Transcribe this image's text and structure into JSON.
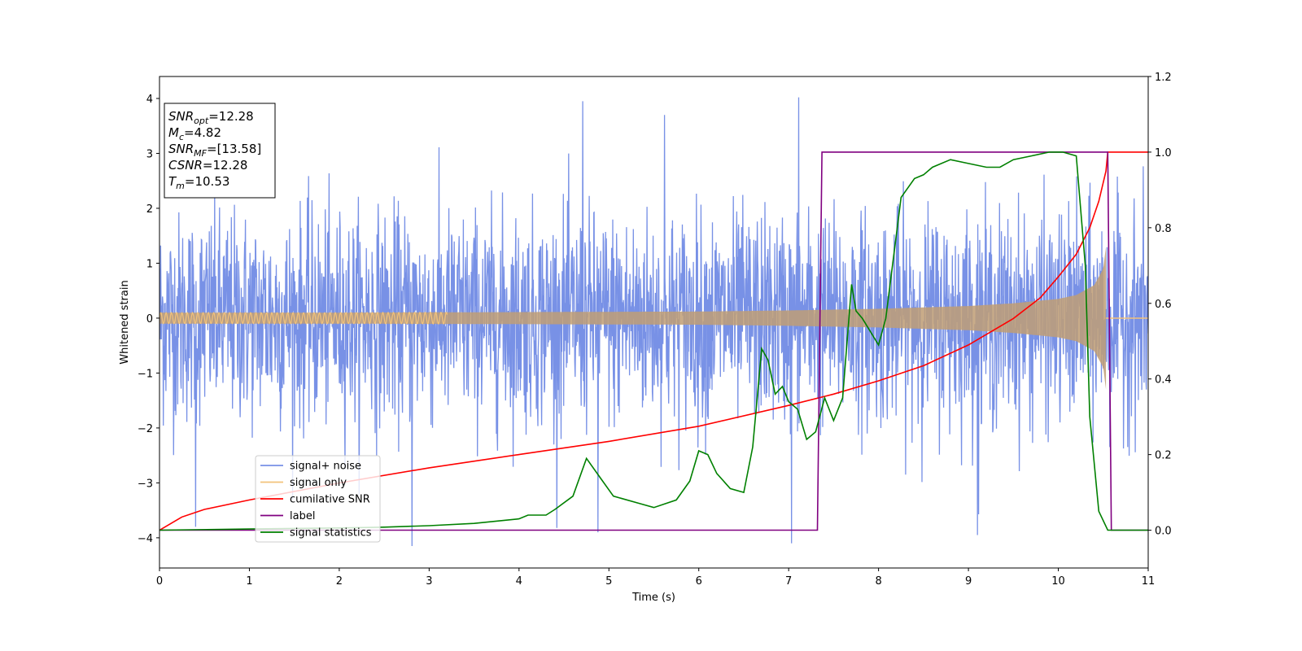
{
  "chart_data": {
    "type": "line",
    "xlabel": "Time (s)",
    "ylabel": "Whitened strain",
    "xlim": [
      0,
      11
    ],
    "ylim_left": [
      -4.55,
      4.4
    ],
    "ylim_right": [
      -0.1,
      1.2
    ],
    "x_ticks": [
      "0",
      "1",
      "2",
      "3",
      "4",
      "5",
      "6",
      "7",
      "8",
      "9",
      "10",
      "11"
    ],
    "y_left_ticks": [
      "4",
      "3",
      "2",
      "1",
      "0",
      "−1",
      "−2",
      "−3",
      "−4"
    ],
    "y_right_ticks": [
      "1.2",
      "1.0",
      "0.8",
      "0.6",
      "0.4",
      "0.2",
      "0.0"
    ],
    "colors": {
      "signal_noise": "#7891e6",
      "signal_only": "#f2c27a",
      "cumulative_snr": "#ff0000",
      "label": "#800080",
      "signal_statistics": "#008000"
    },
    "legend": {
      "placement": "lower-left",
      "entries": [
        "signal+ noise",
        "signal only",
        "cumilative SNR",
        "label",
        "signal statistics"
      ]
    },
    "info_box": {
      "lines": [
        {
          "sym": "SNR",
          "sub": "opt",
          "val": "=12.28"
        },
        {
          "sym": "M",
          "sub": "c",
          "val": "=4.82"
        },
        {
          "sym": "SNR",
          "sub": "MF",
          "val": "=[13.58]"
        },
        {
          "sym": "CSNR",
          "sub": "",
          "val": "=12.28"
        },
        {
          "sym": "T",
          "sub": "m",
          "val": "=10.53"
        }
      ]
    },
    "series": [
      {
        "name": "signal+ noise",
        "axis": "left",
        "envelope": {
          "x": [
            0,
            11
          ],
          "y_typical": [
            -2.3,
            2.5
          ],
          "y_extreme": [
            -4.15,
            4.0
          ]
        },
        "peaks": [
          {
            "x": 4.71,
            "y": 3.95
          },
          {
            "x": 7.11,
            "y": 4.02
          },
          {
            "x": 5.62,
            "y": 3.7
          },
          {
            "x": 2.81,
            "y": -4.15
          },
          {
            "x": 7.03,
            "y": -4.1
          },
          {
            "x": 9.1,
            "y": -3.95
          },
          {
            "x": 0.4,
            "y": -3.8
          },
          {
            "x": 4.88,
            "y": -3.9
          }
        ]
      },
      {
        "name": "signal only",
        "axis": "left",
        "envelope": {
          "x": [
            0,
            2,
            4,
            6,
            7,
            8,
            9,
            9.5,
            10,
            10.2,
            10.4,
            10.5,
            10.53,
            11
          ],
          "amp": [
            0.1,
            0.1,
            0.11,
            0.12,
            0.14,
            0.17,
            0.22,
            0.27,
            0.35,
            0.42,
            0.6,
            0.9,
            1.3,
            0
          ]
        }
      },
      {
        "name": "cumilative SNR",
        "axis": "right",
        "x": [
          0,
          0.25,
          0.5,
          1,
          2,
          3,
          4,
          5,
          6,
          7,
          7.5,
          8,
          8.5,
          9,
          9.5,
          9.8,
          10,
          10.2,
          10.35,
          10.45,
          10.53,
          10.55,
          11
        ],
        "y": [
          0.0,
          0.035,
          0.055,
          0.08,
          0.125,
          0.165,
          0.2,
          0.235,
          0.275,
          0.33,
          0.36,
          0.395,
          0.435,
          0.49,
          0.56,
          0.615,
          0.67,
          0.73,
          0.8,
          0.87,
          0.95,
          1.0,
          1.0
        ]
      },
      {
        "name": "label",
        "axis": "right",
        "x": [
          0,
          7.32,
          7.37,
          10.55,
          10.59,
          11
        ],
        "y": [
          0.0,
          0.0,
          1.0,
          1.0,
          0.0,
          0.0
        ]
      },
      {
        "name": "signal statistics",
        "axis": "right",
        "x": [
          0,
          1,
          2,
          2.5,
          3,
          3.5,
          4,
          4.1,
          4.3,
          4.4,
          4.6,
          4.75,
          4.9,
          5.05,
          5.35,
          5.5,
          5.75,
          5.9,
          6.0,
          6.1,
          6.2,
          6.35,
          6.5,
          6.6,
          6.7,
          6.77,
          6.85,
          6.93,
          7.0,
          7.1,
          7.2,
          7.3,
          7.4,
          7.5,
          7.6,
          7.7,
          7.75,
          7.82,
          8.0,
          8.08,
          8.25,
          8.4,
          8.5,
          8.6,
          8.8,
          9.0,
          9.2,
          9.35,
          9.5,
          9.7,
          9.9,
          10.05,
          10.2,
          10.3,
          10.35,
          10.45,
          10.55,
          11
        ],
        "y": [
          0.0,
          0.003,
          0.006,
          0.008,
          0.012,
          0.018,
          0.03,
          0.04,
          0.04,
          0.055,
          0.09,
          0.19,
          0.14,
          0.09,
          0.07,
          0.06,
          0.08,
          0.13,
          0.21,
          0.2,
          0.15,
          0.11,
          0.1,
          0.22,
          0.48,
          0.45,
          0.36,
          0.38,
          0.34,
          0.32,
          0.24,
          0.26,
          0.35,
          0.29,
          0.35,
          0.65,
          0.58,
          0.56,
          0.49,
          0.56,
          0.88,
          0.93,
          0.94,
          0.96,
          0.98,
          0.97,
          0.96,
          0.96,
          0.98,
          0.99,
          1.0,
          1.0,
          0.99,
          0.7,
          0.3,
          0.05,
          0.0,
          0.0
        ]
      }
    ]
  }
}
